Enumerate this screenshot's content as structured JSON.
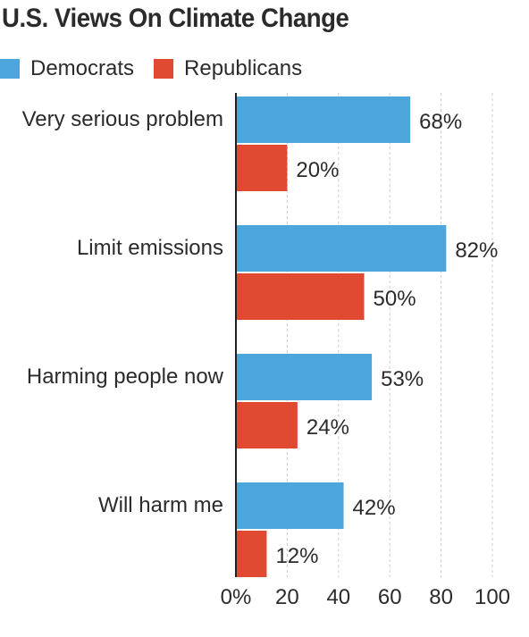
{
  "chart_data": {
    "type": "bar",
    "orientation": "horizontal",
    "title": "U.S. Views On Climate Change",
    "categories": [
      "Very serious problem",
      "Limit emissions",
      "Harming people now",
      "Will harm me"
    ],
    "series": [
      {
        "name": "Democrats",
        "color": "#4da6db",
        "values": [
          68,
          82,
          53,
          42
        ],
        "labels": [
          "68%",
          "82%",
          "53%",
          "42%"
        ]
      },
      {
        "name": "Republicans",
        "color": "#e04a32",
        "values": [
          20,
          50,
          24,
          12
        ],
        "labels": [
          "20%",
          "50%",
          "24%",
          "12%"
        ]
      }
    ],
    "xlim": [
      0,
      100
    ],
    "x_ticks": [
      0,
      20,
      40,
      60,
      80,
      100
    ],
    "x_tick_labels": [
      "0%",
      "20",
      "40",
      "60",
      "80",
      "100"
    ],
    "grid": "vertical dashed",
    "legend_position": "top-left"
  }
}
